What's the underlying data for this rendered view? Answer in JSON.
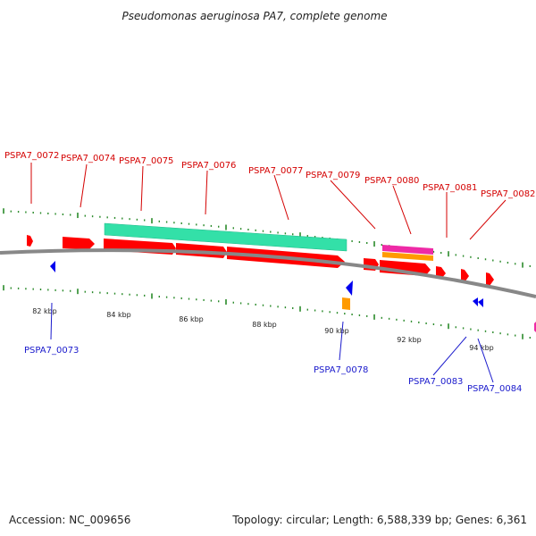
{
  "title": "Pseudomonas aeruginosa PA7, complete genome",
  "footer": {
    "accession": "Accession: NC_009656",
    "summary": "Topology: circular; Length: 6,588,339 bp; Genes: 6,361"
  },
  "colors": {
    "cds": "#ff0000",
    "reverse_cds": "#0000ee",
    "rna_teal": "#33e0a8",
    "magenta": "#ee2aa6",
    "orange": "#ff9a00",
    "backbone": "#888888",
    "tick": "#2a8a2a"
  },
  "scale_labels": [
    "82 kbp",
    "84 kbp",
    "86 kbp",
    "88 kbp",
    "90 kbp",
    "92 kbp",
    "94 kbp"
  ],
  "forward_genes": [
    {
      "id": "PSPA7_0072"
    },
    {
      "id": "PSPA7_0074"
    },
    {
      "id": "PSPA7_0075"
    },
    {
      "id": "PSPA7_0076"
    },
    {
      "id": "PSPA7_0077"
    },
    {
      "id": "PSPA7_0079"
    },
    {
      "id": "PSPA7_0080"
    },
    {
      "id": "PSPA7_0081"
    },
    {
      "id": "PSPA7_0082"
    }
  ],
  "reverse_genes": [
    {
      "id": "PSPA7_0073"
    },
    {
      "id": "PSPA7_0078"
    },
    {
      "id": "PSPA7_0083"
    },
    {
      "id": "PSPA7_0084"
    }
  ]
}
